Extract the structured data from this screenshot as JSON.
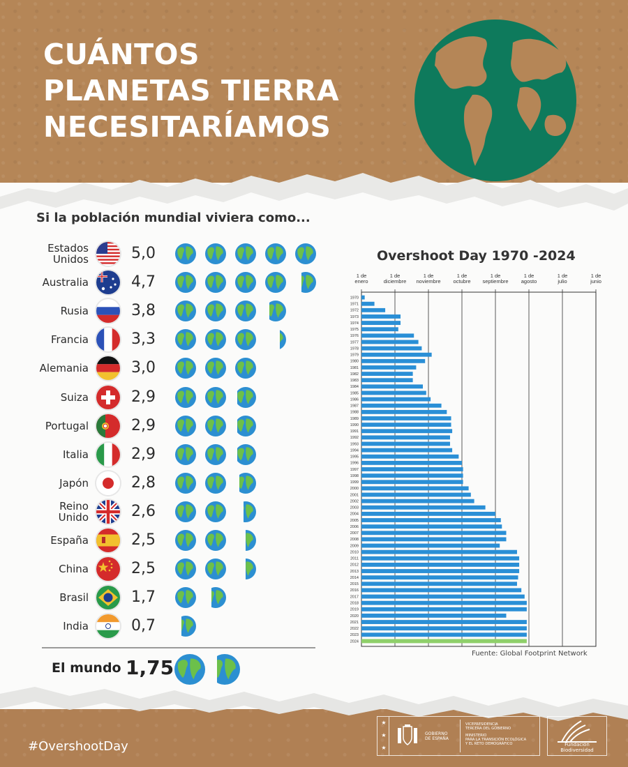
{
  "title_lines": [
    "CUÁNTOS",
    "PLANETAS TIERRA",
    "NECESITARÍAMOS"
  ],
  "subtitle": "Si la población mundial viviera como...",
  "countries": [
    {
      "name": "Estados Unidos",
      "name_lines": [
        "Estados",
        "Unidos"
      ],
      "value_label": "5,0",
      "planets": 5.0,
      "flag": "usa-flag-icon"
    },
    {
      "name": "Australia",
      "name_lines": [
        "Australia"
      ],
      "value_label": "4,7",
      "planets": 4.7,
      "flag": "australia-flag-icon"
    },
    {
      "name": "Rusia",
      "name_lines": [
        "Rusia"
      ],
      "value_label": "3,8",
      "planets": 3.8,
      "flag": "russia-flag-icon"
    },
    {
      "name": "Francia",
      "name_lines": [
        "Francia"
      ],
      "value_label": "3,3",
      "planets": 3.3,
      "flag": "france-flag-icon"
    },
    {
      "name": "Alemania",
      "name_lines": [
        "Alemania"
      ],
      "value_label": "3,0",
      "planets": 3.0,
      "flag": "germany-flag-icon"
    },
    {
      "name": "Suiza",
      "name_lines": [
        "Suiza"
      ],
      "value_label": "2,9",
      "planets": 2.9,
      "flag": "switzerland-flag-icon"
    },
    {
      "name": "Portugal",
      "name_lines": [
        "Portugal"
      ],
      "value_label": "2,9",
      "planets": 2.9,
      "flag": "portugal-flag-icon"
    },
    {
      "name": "Italia",
      "name_lines": [
        "Italia"
      ],
      "value_label": "2,9",
      "planets": 2.9,
      "flag": "italy-flag-icon"
    },
    {
      "name": "Japón",
      "name_lines": [
        "Japón"
      ],
      "value_label": "2,8",
      "planets": 2.8,
      "flag": "japan-flag-icon"
    },
    {
      "name": "Reino Unido",
      "name_lines": [
        "Reino",
        "Unido"
      ],
      "value_label": "2,6",
      "planets": 2.6,
      "flag": "uk-flag-icon"
    },
    {
      "name": "España",
      "name_lines": [
        "España"
      ],
      "value_label": "2,5",
      "planets": 2.5,
      "flag": "spain-flag-icon"
    },
    {
      "name": "China",
      "name_lines": [
        "China"
      ],
      "value_label": "2,5",
      "planets": 2.5,
      "flag": "china-flag-icon"
    },
    {
      "name": "Brasil",
      "name_lines": [
        "Brasil"
      ],
      "value_label": "1,7",
      "planets": 1.7,
      "flag": "brazil-flag-icon"
    },
    {
      "name": "India",
      "name_lines": [
        "India"
      ],
      "value_label": "0,7",
      "planets": 0.7,
      "flag": "india-flag-icon"
    }
  ],
  "world": {
    "label": "El mundo",
    "value_label": "1,75",
    "planets": 1.75
  },
  "colors": {
    "bar": "#2a8fd6",
    "bar_highlight": "#8fd06a",
    "globe_ocean": "#2c8fd1",
    "globe_land": "#6cc04a",
    "globe_big": "#0e7a5c",
    "kraft": "#b58657"
  },
  "chart_data": [
    {
      "type": "bar",
      "orientation": "horizontal",
      "title": "",
      "categories": [
        "Estados Unidos",
        "Australia",
        "Rusia",
        "Francia",
        "Alemania",
        "Suiza",
        "Portugal",
        "Italia",
        "Japón",
        "Reino Unido",
        "España",
        "China",
        "Brasil",
        "India"
      ],
      "values": [
        5.0,
        4.7,
        3.8,
        3.3,
        3.0,
        2.9,
        2.9,
        2.9,
        2.8,
        2.6,
        2.5,
        2.5,
        1.7,
        0.7
      ],
      "value_labels": [
        "5,0",
        "4,7",
        "3,8",
        "3,3",
        "3,0",
        "2,9",
        "2,9",
        "2,9",
        "2,8",
        "2,6",
        "2,5",
        "2,5",
        "1,7",
        "0,7"
      ],
      "unit_icon": "globe-icon"
    },
    {
      "type": "bar",
      "orientation": "horizontal",
      "title": "Overshoot Day 1970 -2024",
      "tick_labels": [
        [
          "1 de",
          "enero"
        ],
        [
          "1 de",
          "diciembre"
        ],
        [
          "1 de",
          "noviembre"
        ],
        [
          "1 de",
          "octubre"
        ],
        [
          "1 de",
          "septiembre"
        ],
        [
          "1 de",
          "agosto"
        ],
        [
          "1 de",
          "julio"
        ],
        [
          "1 de",
          "junio"
        ]
      ],
      "tick_dates": [
        "01-01",
        "12-01",
        "11-01",
        "10-01",
        "09-01",
        "08-01",
        "07-01",
        "06-01"
      ],
      "categories": [
        "1970",
        "1971",
        "1972",
        "1973",
        "1974",
        "1975",
        "1976",
        "1977",
        "1978",
        "1979",
        "1980",
        "1981",
        "1982",
        "1983",
        "1984",
        "1985",
        "1986",
        "1987",
        "1988",
        "1989",
        "1990",
        "1991",
        "1992",
        "1993",
        "1994",
        "1995",
        "1996",
        "1997",
        "1998",
        "1999",
        "2000",
        "2001",
        "2002",
        "2003",
        "2004",
        "2005",
        "2006",
        "2007",
        "2008",
        "2009",
        "2010",
        "2011",
        "2012",
        "2013",
        "2014",
        "2015",
        "2016",
        "2017",
        "2018",
        "2019",
        "2020",
        "2021",
        "2022",
        "2023",
        "2024"
      ],
      "values": [
        "12-29",
        "12-20",
        "12-10",
        "11-26",
        "11-26",
        "11-28",
        "11-14",
        "11-10",
        "11-07",
        "10-29",
        "11-04",
        "11-12",
        "11-15",
        "11-15",
        "11-06",
        "11-03",
        "10-30",
        "10-20",
        "10-15",
        "10-11",
        "10-11",
        "10-10",
        "10-12",
        "10-12",
        "10-10",
        "10-04",
        "10-01",
        "09-30",
        "09-30",
        "09-30",
        "09-25",
        "09-23",
        "09-20",
        "09-10",
        "09-01",
        "08-27",
        "08-26",
        "08-22",
        "08-22",
        "08-28",
        "08-12",
        "08-10",
        "08-10",
        "08-10",
        "08-11",
        "08-12",
        "08-08",
        "08-05",
        "08-03",
        "08-03",
        "08-22",
        "08-03",
        "08-03",
        "08-03",
        "08-03"
      ],
      "highlight": "2024",
      "source": "Fuente: Global Footprint Network"
    }
  ],
  "hashtag": "#OvershootDay",
  "logos": {
    "gov_text": [
      "GOBIERNO",
      "DE ESPAÑA"
    ],
    "ministry_text": [
      "VICEPRESIDENCIA",
      "TERCERA DEL GOBIERNO",
      "",
      "MINISTERIO",
      "PARA LA TRANSICIÓN ECOLÓGICA",
      "Y EL RETO DEMOGRÁFICO"
    ],
    "foundation": "Fundación Biodiversidad"
  }
}
